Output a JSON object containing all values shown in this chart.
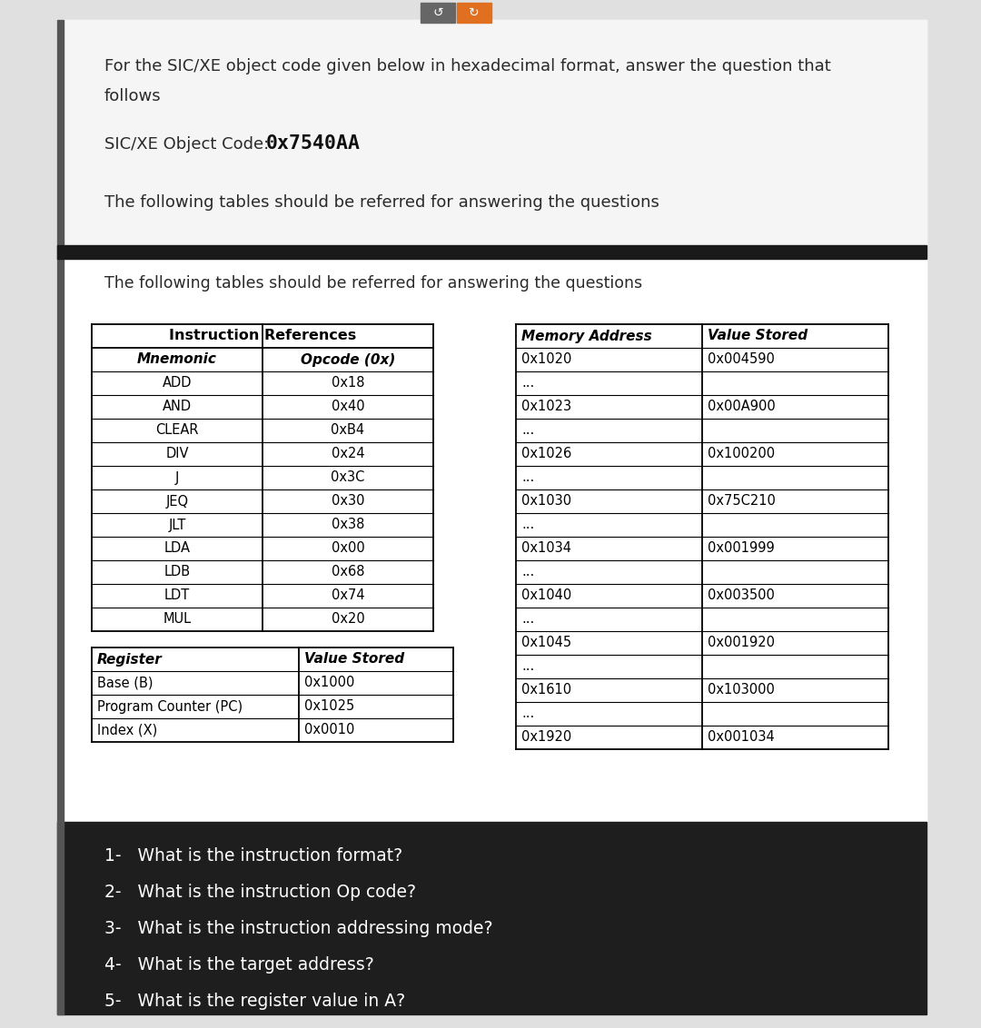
{
  "fig_width": 10.8,
  "fig_height": 11.32,
  "bg_color": "#e0e0e0",
  "header_text_line1": "For the SIC/XE object code given below in hexadecimal format, answer the question that",
  "header_text_line2": "follows",
  "object_code_label": "SIC/XE Object Code: ",
  "object_code_value": "0x7540AA",
  "intro_note": "The following tables should be referred for answering the questions",
  "instruction_table_title": "Instruction References",
  "instruction_col1": "Mnemonic",
  "instruction_col2": "Opcode (0x)",
  "instruction_rows": [
    [
      "ADD",
      "0x18"
    ],
    [
      "AND",
      "0x40"
    ],
    [
      "CLEAR",
      "0xB4"
    ],
    [
      "DIV",
      "0x24"
    ],
    [
      "J",
      "0x3C"
    ],
    [
      "JEQ",
      "0x30"
    ],
    [
      "JLT",
      "0x38"
    ],
    [
      "LDA",
      "0x00"
    ],
    [
      "LDB",
      "0x68"
    ],
    [
      "LDT",
      "0x74"
    ],
    [
      "MUL",
      "0x20"
    ]
  ],
  "register_col1": "Register",
  "register_col2": "Value Stored",
  "register_rows": [
    [
      "Base (B)",
      "0x1000"
    ],
    [
      "Program Counter (PC)",
      "0x1025"
    ],
    [
      "Index (X)",
      "0x0010"
    ]
  ],
  "memory_col1": "Memory Address",
  "memory_col2": "Value Stored",
  "memory_rows": [
    [
      "0x1020",
      "0x004590"
    ],
    [
      "...",
      ""
    ],
    [
      "0x1023",
      "0x00A900"
    ],
    [
      "...",
      ""
    ],
    [
      "0x1026",
      "0x100200"
    ],
    [
      "...",
      ""
    ],
    [
      "0x1030",
      "0x75C210"
    ],
    [
      "...",
      ""
    ],
    [
      "0x1034",
      "0x001999"
    ],
    [
      "...",
      ""
    ],
    [
      "0x1040",
      "0x003500"
    ],
    [
      "...",
      ""
    ],
    [
      "0x1045",
      "0x001920"
    ],
    [
      "...",
      ""
    ],
    [
      "0x1610",
      "0x103000"
    ],
    [
      "...",
      ""
    ],
    [
      "0x1920",
      "0x001034"
    ]
  ],
  "questions": [
    "1-   What is the instruction format?",
    "2-   What is the instruction Op code?",
    "3-   What is the instruction addressing mode?",
    "4-   What is the target address?",
    "5-   What is the register value in A?"
  ],
  "btn1_color": "#666666",
  "btn2_color": "#e07020",
  "left_bar_color": "#555555",
  "black_bar_color": "#1a1a1a",
  "dark_panel_color": "#1e1e1e",
  "card_bg": "#f5f5f5",
  "content_bg": "#ffffff"
}
